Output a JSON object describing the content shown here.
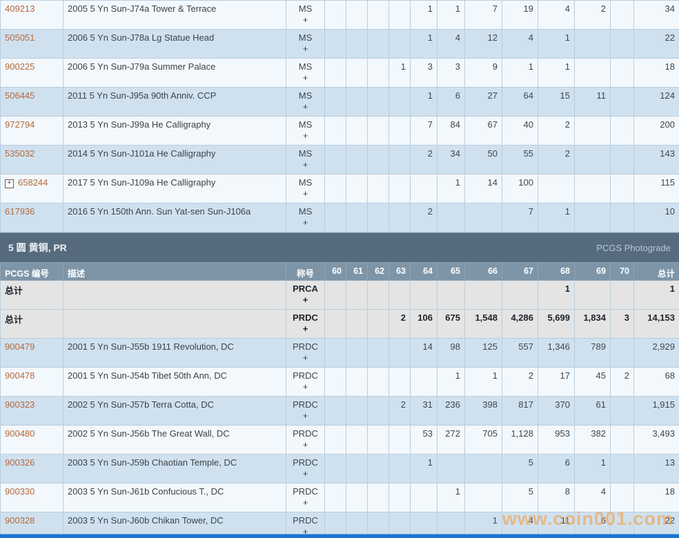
{
  "columns": {
    "pcgs": "PCGS 编号",
    "desc": "描述",
    "desig": "称号",
    "total": "总计"
  },
  "grade_headers": [
    "60",
    "61",
    "62",
    "63",
    "64",
    "65",
    "66",
    "67",
    "68",
    "69",
    "70"
  ],
  "plus_sign": "+",
  "section_top": {
    "rows": [
      {
        "pcgs": "409213",
        "desc": "2005 5 Yn Sun-J74a Tower & Terrace",
        "desig": "MS",
        "shade": "light",
        "expand": false,
        "bold": false,
        "grades": [
          "",
          "",
          "",
          "",
          "1",
          "1",
          "7",
          "19",
          "4",
          "2",
          ""
        ],
        "total": "34"
      },
      {
        "pcgs": "505051",
        "desc": "2006 5 Yn Sun-J78a Lg Statue Head",
        "desig": "MS",
        "shade": "blue",
        "expand": false,
        "bold": false,
        "grades": [
          "",
          "",
          "",
          "",
          "1",
          "4",
          "12",
          "4",
          "1",
          "",
          ""
        ],
        "total": "22"
      },
      {
        "pcgs": "900225",
        "desc": "2006 5 Yn Sun-J79a Summer Palace",
        "desig": "MS",
        "shade": "light",
        "expand": false,
        "bold": false,
        "grades": [
          "",
          "",
          "",
          "1",
          "3",
          "3",
          "9",
          "1",
          "1",
          "",
          ""
        ],
        "total": "18"
      },
      {
        "pcgs": "506445",
        "desc": "2011 5 Yn Sun-J95a 90th Anniv. CCP",
        "desig": "MS",
        "shade": "blue",
        "expand": false,
        "bold": false,
        "grades": [
          "",
          "",
          "",
          "",
          "1",
          "6",
          "27",
          "64",
          "15",
          "11",
          ""
        ],
        "total": "124"
      },
      {
        "pcgs": "972794",
        "desc": "2013 5 Yn Sun-J99a He Calligraphy",
        "desig": "MS",
        "shade": "light",
        "expand": false,
        "bold": false,
        "grades": [
          "",
          "",
          "",
          "",
          "7",
          "84",
          "67",
          "40",
          "2",
          "",
          ""
        ],
        "total": "200"
      },
      {
        "pcgs": "535032",
        "desc": "2014 5 Yn Sun-J101a He Calligraphy",
        "desig": "MS",
        "shade": "blue",
        "expand": false,
        "bold": false,
        "grades": [
          "",
          "",
          "",
          "",
          "2",
          "34",
          "50",
          "55",
          "2",
          "",
          ""
        ],
        "total": "143"
      },
      {
        "pcgs": "658244",
        "desc": "2017 5 Yn Sun-J109a He Calligraphy",
        "desig": "MS",
        "shade": "light",
        "expand": true,
        "bold": false,
        "grades": [
          "",
          "",
          "",
          "",
          "",
          "1",
          "14",
          "100",
          "",
          "",
          ""
        ],
        "total": "115"
      },
      {
        "pcgs": "617936",
        "desc": "2016 5 Yn 150th Ann. Sun Yat-sen Sun-J106a",
        "desig": "MS",
        "shade": "blue",
        "expand": false,
        "bold": false,
        "grades": [
          "",
          "",
          "",
          "",
          "2",
          "",
          "",
          "7",
          "1",
          "",
          ""
        ],
        "total": "10"
      }
    ]
  },
  "section_pr": {
    "title": "5 圆 黄铜, PR",
    "link": "PCGS Photograde",
    "rows": [
      {
        "label": "总计",
        "pcgs": "",
        "desc": "",
        "desig": "PRCA",
        "shade": "gray",
        "expand": false,
        "bold": true,
        "grades": [
          "",
          "",
          "",
          "",
          "",
          "",
          "",
          "",
          "1",
          "",
          ""
        ],
        "total": "1"
      },
      {
        "label": "总计",
        "pcgs": "",
        "desc": "",
        "desig": "PRDC",
        "shade": "gray",
        "expand": false,
        "bold": true,
        "grades": [
          "",
          "",
          "",
          "2",
          "106",
          "675",
          "1,548",
          "4,286",
          "5,699",
          "1,834",
          "3"
        ],
        "total": "14,153"
      },
      {
        "pcgs": "900479",
        "desc": "2001 5 Yn Sun-J55b 1911 Revolution, DC",
        "desig": "PRDC",
        "shade": "blue",
        "expand": false,
        "bold": false,
        "grades": [
          "",
          "",
          "",
          "",
          "14",
          "98",
          "125",
          "557",
          "1,346",
          "789",
          ""
        ],
        "total": "2,929"
      },
      {
        "pcgs": "900478",
        "desc": "2001 5 Yn Sun-J54b Tibet 50th Ann, DC",
        "desig": "PRDC",
        "shade": "light",
        "expand": false,
        "bold": false,
        "grades": [
          "",
          "",
          "",
          "",
          "",
          "1",
          "1",
          "2",
          "17",
          "45",
          "2"
        ],
        "total": "68"
      },
      {
        "pcgs": "900323",
        "desc": "2002 5 Yn Sun-J57b Terra Cotta, DC",
        "desig": "PRDC",
        "shade": "blue",
        "expand": false,
        "bold": false,
        "grades": [
          "",
          "",
          "",
          "2",
          "31",
          "236",
          "398",
          "817",
          "370",
          "61",
          ""
        ],
        "total": "1,915"
      },
      {
        "pcgs": "900480",
        "desc": "2002 5 Yn Sun-J56b The Great Wall, DC",
        "desig": "PRDC",
        "shade": "light",
        "expand": false,
        "bold": false,
        "grades": [
          "",
          "",
          "",
          "",
          "53",
          "272",
          "705",
          "1,128",
          "953",
          "382",
          ""
        ],
        "total": "3,493"
      },
      {
        "pcgs": "900326",
        "desc": "2003 5 Yn Sun-J59b Chaotian Temple, DC",
        "desig": "PRDC",
        "shade": "blue",
        "expand": false,
        "bold": false,
        "grades": [
          "",
          "",
          "",
          "",
          "1",
          "",
          "",
          "5",
          "6",
          "1",
          ""
        ],
        "total": "13"
      },
      {
        "pcgs": "900330",
        "desc": "2003 5 Yn Sun-J61b Confucious T., DC",
        "desig": "PRDC",
        "shade": "light",
        "expand": false,
        "bold": false,
        "grades": [
          "",
          "",
          "",
          "",
          "",
          "1",
          "",
          "5",
          "8",
          "4",
          ""
        ],
        "total": "18"
      },
      {
        "pcgs": "900328",
        "desc": "2003 5 Yn Sun-J60b Chikan Tower, DC",
        "desig": "PRDC",
        "shade": "blue",
        "expand": false,
        "bold": false,
        "grades": [
          "",
          "",
          "",
          "",
          "",
          "",
          "1",
          "4",
          "11",
          "6",
          ""
        ],
        "total": "22"
      }
    ]
  },
  "watermark": "www.coin001.com",
  "colors": {
    "band_bg": "#566b7d",
    "header_bg": "#7e95a7",
    "row_blue": "#cfe1ef",
    "row_light": "#f3f8fc",
    "row_gray": "#e4e4e4",
    "border": "#b9cdde",
    "link_orange": "#b5683e",
    "bottom_bar": "#1c74d0",
    "watermark_orange": "#f0a048"
  }
}
